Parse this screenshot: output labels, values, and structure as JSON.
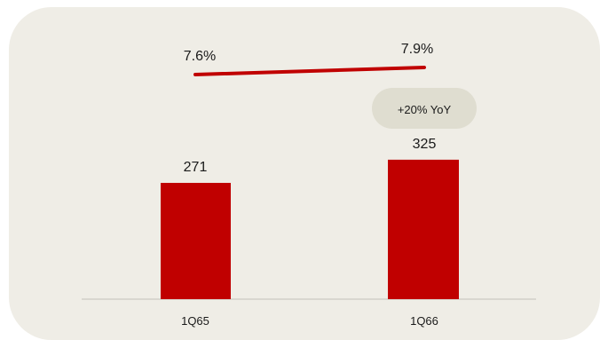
{
  "chart_data": {
    "type": "bar",
    "categories": [
      "1Q65",
      "1Q66"
    ],
    "series": [
      {
        "values": [
          271,
          325
        ],
        "colors": [
          "#c00000",
          "#c00000"
        ]
      }
    ],
    "line_series": {
      "values": [
        7.6,
        7.9
      ],
      "labels": [
        "7.6%",
        "7.9%"
      ],
      "color": "#c00000"
    },
    "bar_labels": [
      "271",
      "325"
    ],
    "annotation": {
      "text": "+20% YoY"
    },
    "colors": {
      "background": "#efede6",
      "bar": "#c00000",
      "pill": "#dfddd0",
      "axis": "#d2d0c8"
    }
  }
}
